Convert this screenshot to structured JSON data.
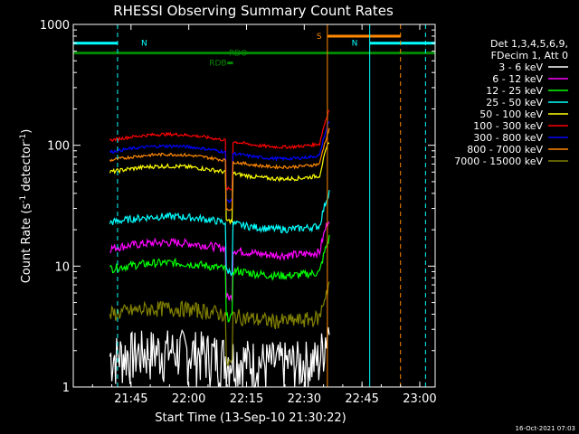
{
  "chart_data": {
    "type": "line",
    "title": "RHESSI Observing Summary Count Rates",
    "xlabel": "Start Time (13-Sep-10 21:30:22)",
    "ylabel_main": "Count Rate (s",
    "ylabel_sup1": "-1",
    "ylabel_mid": " detector",
    "ylabel_sup2": "-1",
    "ylabel_end": ")",
    "y_scale": "log",
    "ylim": [
      1,
      1000
    ],
    "xlim_minutes": [
      0,
      94
    ],
    "x_ticks": [
      {
        "min": 15,
        "label": "21:45"
      },
      {
        "min": 30,
        "label": "22:00"
      },
      {
        "min": 45,
        "label": "22:15"
      },
      {
        "min": 60,
        "label": "22:30"
      },
      {
        "min": 75,
        "label": "22:45"
      },
      {
        "min": 90,
        "label": "23:00"
      }
    ],
    "y_ticks": [
      {
        "v": 1,
        "label": "1"
      },
      {
        "v": 10,
        "label": "10"
      },
      {
        "v": 100,
        "label": "100"
      },
      {
        "v": 1000,
        "label": "1000"
      }
    ],
    "legend": {
      "header1": "Det 1,3,4,5,6,9,",
      "header2": "FDecim 1, Att 0",
      "position": "right"
    },
    "series": [
      {
        "name": "3 - 6 keV",
        "color": "#ffffff",
        "level": 1.8,
        "noise": 0.5
      },
      {
        "name": "6 - 12 keV",
        "color": "#ff00ff",
        "level": 14,
        "noise": 0.08
      },
      {
        "name": "12 - 25 keV",
        "color": "#00ff00",
        "level": 9.5,
        "noise": 0.08
      },
      {
        "name": "25 - 50 keV",
        "color": "#00ffff",
        "level": 23,
        "noise": 0.07
      },
      {
        "name": "50 - 100 keV",
        "color": "#ffff00",
        "level": 60,
        "noise": 0.04
      },
      {
        "name": "100 - 300 keV",
        "color": "#ff0000",
        "level": 110,
        "noise": 0.03
      },
      {
        "name": "300 - 800 keV",
        "color": "#0000ff",
        "level": 88,
        "noise": 0.03
      },
      {
        "name": "800 - 7000 keV",
        "color": "#ff8800",
        "level": 75,
        "noise": 0.03
      },
      {
        "name": "7000 - 15000 keV",
        "color": "#808000",
        "level": 4,
        "noise": 0.15
      }
    ],
    "flags": [
      {
        "label": "N",
        "color": "#00ffff",
        "start_min": 0,
        "end_min": 11.5,
        "level": 700
      },
      {
        "label": "N",
        "color": "#00ffff",
        "start_min": 77,
        "end_min": 94,
        "level": 700
      },
      {
        "label": "S",
        "color": "#ff8800",
        "start_min": 66,
        "end_min": 85,
        "level": 800
      },
      {
        "label": "RDO",
        "color": "#008800",
        "start_min": 0,
        "end_min": 94,
        "level": 580
      },
      {
        "label": "RDB",
        "color": "#008800",
        "start_min": 40,
        "end_min": 41.5,
        "level": 480
      }
    ],
    "vlines": [
      {
        "min": 11.5,
        "color": "#00ffff",
        "dashed": true
      },
      {
        "min": 91.5,
        "color": "#00ffff",
        "dashed": true
      },
      {
        "min": 77,
        "color": "#00ffff",
        "dashed": false
      },
      {
        "min": 66,
        "color": "#ff8800",
        "dashed": false
      },
      {
        "min": 85,
        "color": "#ff8800",
        "dashed": true
      }
    ],
    "data_span_min": [
      9.5,
      66.5
    ],
    "dip_min": [
      39.5,
      41.5
    ]
  },
  "footer_date": "16-Oct-2021 07:03"
}
